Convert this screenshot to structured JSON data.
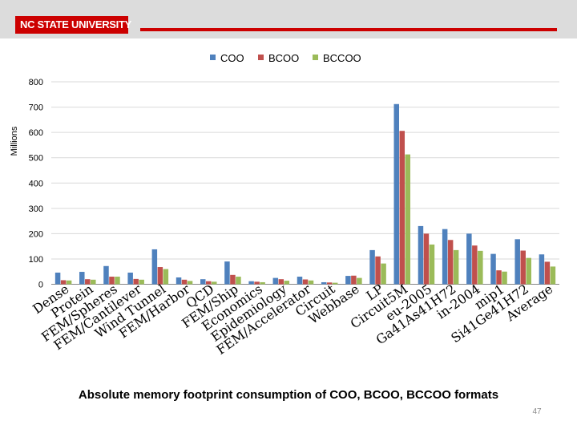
{
  "header": {
    "logo_text": "NC STATE UNIVERSITY",
    "brand_color": "#cc0000"
  },
  "chart_data": {
    "type": "bar",
    "title": "",
    "ylabel": "Millions",
    "xlabel": "",
    "ylim": [
      0,
      800
    ],
    "yticks": [
      0,
      100,
      200,
      300,
      400,
      500,
      600,
      700,
      800
    ],
    "legend_position": "top",
    "categories": [
      "Dense",
      "Protein",
      "FEM/Spheres",
      "FEM/Cantilever",
      "Wind Tunnel",
      "FEM/Harbor",
      "QCD",
      "FEM/Ship",
      "Economics",
      "Epidemiology",
      "FEM/Accelerator",
      "Circuit",
      "Webbase",
      "LP",
      "Circuit5M",
      "eu-2005",
      "Ga41As41H72",
      "in-2004",
      "mip1",
      "Si41Ge41H72",
      "Average"
    ],
    "series": [
      {
        "name": "COO",
        "color": "#4f81bd",
        "values": [
          46,
          49,
          72,
          46,
          138,
          27,
          20,
          90,
          12,
          25,
          30,
          8,
          33,
          135,
          712,
          230,
          218,
          200,
          120,
          178,
          118
        ]
      },
      {
        "name": "BCOO",
        "color": "#c0504d",
        "values": [
          16,
          20,
          30,
          21,
          68,
          18,
          12,
          37,
          10,
          20,
          19,
          7,
          34,
          110,
          606,
          200,
          175,
          153,
          55,
          133,
          89
        ]
      },
      {
        "name": "BCCOO",
        "color": "#9bbb59",
        "values": [
          15,
          18,
          30,
          18,
          60,
          13,
          10,
          30,
          8,
          14,
          15,
          6,
          25,
          82,
          513,
          157,
          135,
          132,
          50,
          104,
          70
        ]
      }
    ]
  },
  "caption": "Absolute memory footprint consumption of COO, BCOO, BCCOO formats",
  "page_number": "47"
}
